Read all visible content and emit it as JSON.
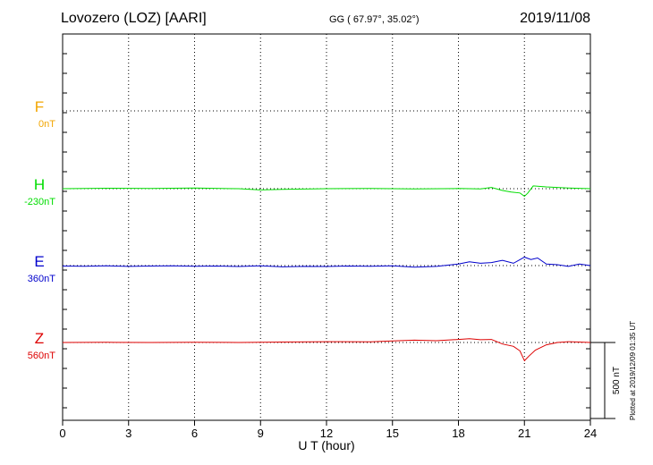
{
  "header": {
    "station": "Lovozero (LOZ)  [AARI]",
    "coords": "GG ( 67.97°,  35.02°)",
    "date": "2019/11/08"
  },
  "footer": {
    "plotted": "Plotted at 2019/12/09 01:35 UT"
  },
  "chart_data": {
    "type": "line",
    "xlabel": "U T (hour)",
    "xlim": [
      0,
      24
    ],
    "xticks": [
      0,
      3,
      6,
      9,
      12,
      15,
      18,
      21,
      24
    ],
    "grid": true,
    "scale_bar": {
      "label": "500 nT",
      "value": 500
    },
    "series": [
      {
        "name": "F",
        "baseline_label": "0nT",
        "color": "#f2a500",
        "x": [],
        "y": []
      },
      {
        "name": "H",
        "baseline_label": "-230nT",
        "color": "#00dd00",
        "x": [
          0,
          2,
          4,
          6,
          8,
          9,
          10,
          12,
          14,
          16,
          18,
          19,
          19.5,
          20,
          20.4,
          20.8,
          21.0,
          21.15,
          21.4,
          22,
          23,
          24
        ],
        "y": [
          0,
          3,
          2,
          4,
          0,
          -8,
          -4,
          0,
          2,
          -2,
          1,
          -2,
          8,
          -12,
          -22,
          -28,
          -50,
          -30,
          18,
          12,
          5,
          0
        ]
      },
      {
        "name": "E",
        "baseline_label": "360nT",
        "color": "#0000cc",
        "x": [
          0,
          1,
          2,
          3,
          4,
          5,
          6,
          7,
          8,
          9,
          10,
          11,
          12,
          13,
          14,
          15,
          16,
          17,
          18,
          18.5,
          19,
          19.5,
          20,
          20.5,
          21,
          21.3,
          21.6,
          22,
          22.5,
          23,
          23.5,
          24
        ],
        "y": [
          -3,
          -4,
          -2,
          -5,
          -3,
          -1,
          -4,
          -3,
          -6,
          -2,
          -8,
          -5,
          -6,
          -3,
          -4,
          -2,
          -10,
          -5,
          10,
          25,
          15,
          20,
          35,
          15,
          55,
          40,
          50,
          10,
          6,
          -5,
          10,
          0
        ]
      },
      {
        "name": "Z",
        "baseline_label": "560nT",
        "color": "#dd0000",
        "x": [
          0,
          2,
          4,
          6,
          8,
          10,
          12,
          14,
          15,
          16,
          17,
          18,
          18.5,
          19,
          19.5,
          20,
          20.5,
          20.8,
          21.0,
          21.2,
          21.5,
          22,
          22.5,
          23,
          23.5,
          24
        ],
        "y": [
          0,
          1,
          0,
          2,
          0,
          3,
          5,
          4,
          10,
          15,
          12,
          20,
          25,
          18,
          20,
          -10,
          -25,
          -55,
          -120,
          -90,
          -50,
          -15,
          0,
          5,
          3,
          0
        ]
      }
    ]
  }
}
